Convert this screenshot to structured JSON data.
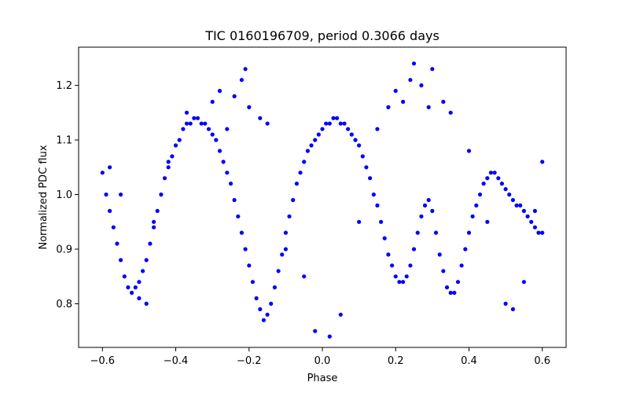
{
  "chart_data": {
    "type": "scatter",
    "title": "TIC 0160196709, period 0.3066 days",
    "xlabel": "Phase",
    "ylabel": "Normalized PDC flux",
    "xlim": [
      -0.665,
      0.665
    ],
    "ylim": [
      0.72,
      1.27
    ],
    "x_ticks": [
      {
        "value": -0.6,
        "label": "−0.6"
      },
      {
        "value": -0.4,
        "label": "−0.4"
      },
      {
        "value": -0.2,
        "label": "−0.2"
      },
      {
        "value": 0.0,
        "label": "0.0"
      },
      {
        "value": 0.2,
        "label": "0.2"
      },
      {
        "value": 0.4,
        "label": "0.4"
      },
      {
        "value": 0.6,
        "label": "0.6"
      }
    ],
    "y_ticks": [
      {
        "value": 0.8,
        "label": "0.8"
      },
      {
        "value": 0.9,
        "label": "0.9"
      },
      {
        "value": 1.0,
        "label": "1.0"
      },
      {
        "value": 1.1,
        "label": "1.1"
      },
      {
        "value": 1.2,
        "label": "1.2"
      }
    ],
    "grid": false,
    "marker_color": "#0000ff",
    "series": [
      {
        "x": [
          -0.6,
          -0.59,
          -0.58,
          -0.57,
          -0.56,
          -0.55,
          -0.54,
          -0.53,
          -0.52,
          -0.51,
          -0.5,
          -0.49,
          -0.48,
          -0.47,
          -0.46,
          -0.45,
          -0.44,
          -0.43,
          -0.42,
          -0.41,
          -0.4,
          -0.39,
          -0.38,
          -0.37,
          -0.36,
          -0.35,
          -0.34,
          -0.33,
          -0.32,
          -0.31,
          -0.3,
          -0.29,
          -0.28,
          -0.27,
          -0.26,
          -0.25,
          -0.24,
          -0.23,
          -0.22,
          -0.21,
          -0.2,
          -0.19,
          -0.18,
          -0.17,
          -0.16,
          -0.15,
          -0.14,
          -0.13,
          -0.12,
          -0.11,
          -0.1,
          -0.09,
          -0.08,
          -0.07,
          -0.06,
          -0.05,
          -0.04,
          -0.03,
          -0.02,
          -0.01,
          0.0,
          0.01,
          0.02,
          0.03,
          0.04,
          0.05,
          0.06,
          0.07,
          0.08,
          0.09,
          0.1,
          0.11,
          0.12,
          0.13,
          0.14,
          0.15,
          0.16,
          0.17,
          0.18,
          0.19,
          0.2,
          0.21,
          0.22,
          0.23,
          0.24,
          0.25,
          0.26,
          0.27,
          0.28,
          0.29,
          0.3,
          0.31,
          0.32,
          0.33,
          0.34,
          0.35,
          0.36,
          0.37,
          0.38,
          0.39,
          0.4,
          0.41,
          0.42,
          0.43,
          0.44,
          0.45,
          0.46,
          0.47,
          0.48,
          0.49,
          0.5,
          0.51,
          0.52,
          0.53,
          0.54,
          0.55,
          0.56,
          0.57,
          0.58,
          0.59,
          0.6
        ],
        "y": [
          1.04,
          1.0,
          0.97,
          0.94,
          0.91,
          0.88,
          0.85,
          0.83,
          0.82,
          0.83,
          0.84,
          0.86,
          0.88,
          0.91,
          0.94,
          0.97,
          1.0,
          1.03,
          1.05,
          1.07,
          1.09,
          1.1,
          1.12,
          1.13,
          1.13,
          1.14,
          1.14,
          1.13,
          1.13,
          1.12,
          1.11,
          1.1,
          1.08,
          1.06,
          1.04,
          1.02,
          0.99,
          0.96,
          0.93,
          0.9,
          0.87,
          0.84,
          0.81,
          0.79,
          0.77,
          0.78,
          0.8,
          0.83,
          0.86,
          0.89,
          0.93,
          0.96,
          0.99,
          1.02,
          1.04,
          1.06,
          1.08,
          1.09,
          1.1,
          1.11,
          1.12,
          1.13,
          1.13,
          1.14,
          1.14,
          1.13,
          1.13,
          1.12,
          1.11,
          1.1,
          1.09,
          1.07,
          1.05,
          1.03,
          1.0,
          0.98,
          0.95,
          0.92,
          0.89,
          0.87,
          0.85,
          0.84,
          0.84,
          0.85,
          0.87,
          0.9,
          0.93,
          0.96,
          0.98,
          0.99,
          0.97,
          0.93,
          0.89,
          0.86,
          0.83,
          0.82,
          0.82,
          0.84,
          0.87,
          0.9,
          0.93,
          0.96,
          0.98,
          1.0,
          1.02,
          1.03,
          1.04,
          1.04,
          1.03,
          1.02,
          1.01,
          1.0,
          0.99,
          0.98,
          0.98,
          0.97,
          0.96,
          0.95,
          0.94,
          0.93,
          0.93
        ]
      },
      {
        "x": [
          -0.58,
          -0.55,
          -0.5,
          -0.48,
          -0.46,
          -0.42,
          -0.37,
          -0.3,
          -0.28,
          -0.26,
          -0.24,
          -0.22,
          -0.21,
          -0.2,
          -0.17,
          -0.15,
          -0.1,
          -0.05,
          -0.02,
          0.02,
          0.05,
          0.1,
          0.15,
          0.18,
          0.2,
          0.22,
          0.24,
          0.25,
          0.27,
          0.29,
          0.3,
          0.33,
          0.35,
          0.4,
          0.45,
          0.5,
          0.52,
          0.55,
          0.58,
          0.6
        ],
        "y": [
          1.05,
          1.0,
          0.81,
          0.8,
          0.95,
          1.06,
          1.15,
          1.17,
          1.19,
          1.12,
          1.18,
          1.21,
          1.23,
          1.16,
          1.14,
          1.13,
          0.9,
          0.85,
          0.75,
          0.74,
          0.78,
          0.95,
          1.12,
          1.16,
          1.19,
          1.17,
          1.21,
          1.24,
          1.2,
          1.16,
          1.23,
          1.17,
          1.15,
          1.08,
          0.95,
          0.8,
          0.79,
          0.84,
          0.97,
          1.06
        ]
      }
    ]
  }
}
